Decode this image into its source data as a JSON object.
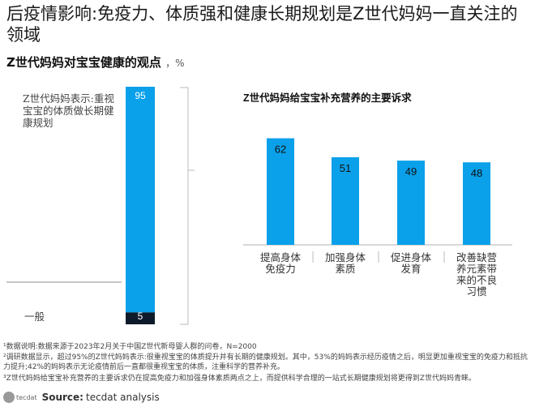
{
  "title": "后疫情影响:免疫力、体质强和健康长期规划是Z世代妈妈一直关注的领域",
  "subtitle": "Z世代妈妈对宝宝健康的观点",
  "subtitle_unit": "，%",
  "chart_data": [
    {
      "type": "bar",
      "stacked": true,
      "categories": [
        "Z世代妈妈表示:重视宝宝的体质做长期健康规划",
        "一般"
      ],
      "values": [
        95,
        5
      ],
      "colors": [
        "#0aa0ea",
        "#0d1b2a"
      ],
      "ylim": [
        0,
        100
      ]
    },
    {
      "type": "bar",
      "title": "Z世代妈妈给宝宝补充营养的主要诉求",
      "categories": [
        "提高身体免疫力",
        "加强身体素质",
        "促进身体发育",
        "改善缺营养元素带来的不良习惯"
      ],
      "category_lines": [
        [
          "提高身体",
          "免疫力"
        ],
        [
          "加强身体",
          "素质"
        ],
        [
          "促进身体",
          "发育"
        ],
        [
          "改善缺营",
          "养元素带",
          "来的不良",
          "习惯"
        ]
      ],
      "values": [
        62,
        51,
        49,
        48
      ],
      "color": "#0aa0ea"
    }
  ],
  "footnotes": [
    "¹数据说明:数据来源于2023年2月关于中国Z世代新母婴人群的问卷，N=2000",
    "²调研数据显示，超过95%的Z世代妈妈表示:很重视宝宝的体质提升并有长期的健康规划。其中，53%的妈妈表示经历疫情之后，明显更加重视宝宝的免疫力和抵抗力提升;42%的妈妈表示无论疫情前后一直都很重视宝宝的体质，注重科学的营养补充。",
    "³Z世代妈妈给宝宝补充营养的主要诉求仍在提高免疫力和加强身体素质两点之上，而提供科学合理的一站式长期健康规划将更得到Z世代妈妈青睐。"
  ],
  "source": {
    "label": "Source:",
    "text": "tecdat analysis",
    "logo": "tecdat"
  }
}
